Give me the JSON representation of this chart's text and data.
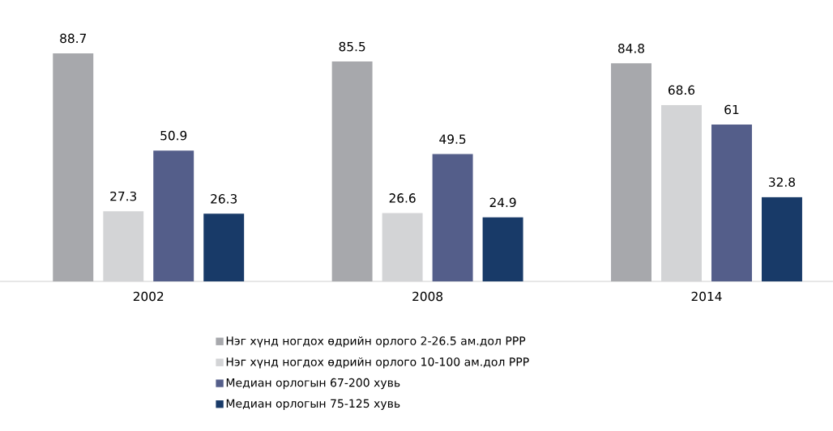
{
  "chart_data": {
    "type": "bar",
    "categories": [
      "2002",
      "2008",
      "2014"
    ],
    "series": [
      {
        "name": "Нэг хүнд ногдох өдрийн орлого 2-26.5 ам.дол PPP",
        "color": "#a7a8ac",
        "values": [
          88.7,
          85.5,
          84.8
        ]
      },
      {
        "name": "Нэг хүнд ногдох өдрийн орлого 10-100 ам.дол PPP",
        "color": "#d3d4d6",
        "values": [
          27.3,
          26.6,
          68.6
        ]
      },
      {
        "name": "Медиан орлогын 67-200 хувь",
        "color": "#545e8a",
        "values": [
          50.9,
          49.5,
          61
        ]
      },
      {
        "name": "Медиан орлогын 75-125 хувь",
        "color": "#183a68",
        "values": [
          26.3,
          24.9,
          32.8
        ]
      }
    ],
    "data_labels": true,
    "legend": "bottom"
  }
}
